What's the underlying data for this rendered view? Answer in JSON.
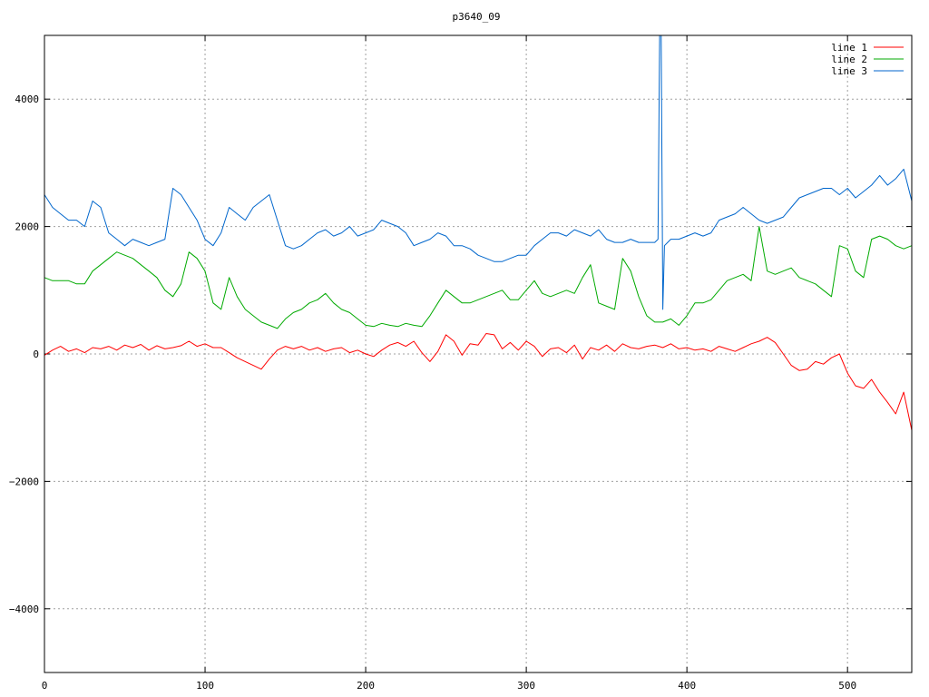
{
  "chart_data": {
    "type": "line",
    "title": "p3640_09",
    "xlabel": "",
    "ylabel": "",
    "xlim": [
      0,
      540
    ],
    "ylim": [
      -5000,
      5000
    ],
    "x_ticks": [
      0,
      100,
      200,
      300,
      400,
      500
    ],
    "y_ticks": [
      -4000,
      -2000,
      0,
      2000,
      4000
    ],
    "x_tick_labels": [
      "0",
      "100",
      "200",
      "300",
      "400",
      "500"
    ],
    "y_tick_labels": [
      "−4000",
      "−2000",
      "0",
      "2000",
      "4000"
    ],
    "grid": true,
    "legend_position": "top-right",
    "series": [
      {
        "name": "line 1",
        "color": "#ff0000",
        "x": [
          0,
          5,
          10,
          15,
          20,
          25,
          30,
          35,
          40,
          45,
          50,
          55,
          60,
          65,
          70,
          75,
          80,
          85,
          90,
          95,
          100,
          105,
          110,
          115,
          120,
          125,
          130,
          135,
          140,
          145,
          150,
          155,
          160,
          165,
          170,
          175,
          180,
          185,
          190,
          195,
          200,
          205,
          210,
          215,
          220,
          225,
          230,
          235,
          240,
          245,
          250,
          255,
          260,
          265,
          270,
          275,
          280,
          285,
          290,
          295,
          300,
          305,
          310,
          315,
          320,
          325,
          330,
          335,
          340,
          345,
          350,
          355,
          360,
          365,
          370,
          375,
          380,
          385,
          390,
          395,
          400,
          405,
          410,
          415,
          420,
          425,
          430,
          435,
          440,
          445,
          450,
          455,
          460,
          465,
          470,
          475,
          480,
          485,
          490,
          495,
          500,
          505,
          510,
          515,
          520,
          525,
          530,
          535,
          540
        ],
        "y": [
          -20,
          60,
          120,
          40,
          80,
          20,
          100,
          80,
          120,
          60,
          140,
          100,
          150,
          60,
          130,
          80,
          100,
          130,
          200,
          120,
          160,
          100,
          100,
          20,
          -60,
          -120,
          -180,
          -240,
          -80,
          60,
          120,
          80,
          120,
          60,
          100,
          40,
          80,
          100,
          20,
          60,
          0,
          -40,
          60,
          140,
          180,
          120,
          200,
          20,
          -120,
          40,
          300,
          200,
          -20,
          160,
          140,
          320,
          300,
          80,
          180,
          60,
          200,
          120,
          -40,
          80,
          100,
          20,
          140,
          -80,
          100,
          60,
          140,
          40,
          160,
          100,
          80,
          120,
          140,
          100,
          160,
          80,
          100,
          60,
          80,
          40,
          120,
          80,
          40,
          100,
          160,
          200,
          260,
          180,
          0,
          -180,
          -260,
          -240,
          -120,
          -160,
          -60,
          0,
          -300,
          -500,
          -540,
          -400,
          -600,
          -760,
          -940,
          -600,
          -1200
        ]
      },
      {
        "name": "line 2",
        "color": "#00aa00",
        "x": [
          0,
          5,
          10,
          15,
          20,
          25,
          30,
          35,
          40,
          45,
          50,
          55,
          60,
          65,
          70,
          75,
          80,
          85,
          90,
          95,
          100,
          105,
          110,
          115,
          120,
          125,
          130,
          135,
          140,
          145,
          150,
          155,
          160,
          165,
          170,
          175,
          180,
          185,
          190,
          195,
          200,
          205,
          210,
          215,
          220,
          225,
          230,
          235,
          240,
          245,
          250,
          255,
          260,
          265,
          270,
          275,
          280,
          285,
          290,
          295,
          300,
          305,
          310,
          315,
          320,
          325,
          330,
          335,
          340,
          345,
          350,
          355,
          360,
          365,
          370,
          375,
          380,
          385,
          390,
          395,
          400,
          405,
          410,
          415,
          420,
          425,
          430,
          435,
          440,
          445,
          450,
          455,
          460,
          465,
          470,
          475,
          480,
          485,
          490,
          495,
          500,
          505,
          510,
          515,
          520,
          525,
          530,
          535,
          540
        ],
        "y": [
          1200,
          1150,
          1150,
          1150,
          1100,
          1100,
          1300,
          1400,
          1500,
          1600,
          1550,
          1500,
          1400,
          1300,
          1200,
          1000,
          900,
          1100,
          1600,
          1500,
          1300,
          800,
          700,
          1200,
          900,
          700,
          600,
          500,
          450,
          400,
          550,
          650,
          700,
          800,
          850,
          950,
          800,
          700,
          650,
          550,
          450,
          430,
          480,
          450,
          430,
          480,
          450,
          430,
          600,
          800,
          1000,
          900,
          800,
          800,
          850,
          900,
          950,
          1000,
          850,
          850,
          1000,
          1150,
          950,
          900,
          950,
          1000,
          950,
          1200,
          1400,
          800,
          750,
          700,
          1500,
          1300,
          900,
          600,
          500,
          500,
          550,
          450,
          600,
          800,
          800,
          850,
          1000,
          1150,
          1200,
          1250,
          1150,
          2000,
          1300,
          1250,
          1300,
          1350,
          1200,
          1150,
          1100,
          1000,
          900,
          1700,
          1650,
          1300,
          1200,
          1800,
          1850,
          1800,
          1700,
          1650,
          1700
        ]
      },
      {
        "name": "line 3",
        "color": "#0066cc",
        "x": [
          0,
          5,
          10,
          15,
          20,
          25,
          30,
          35,
          40,
          45,
          50,
          55,
          60,
          65,
          70,
          75,
          80,
          85,
          90,
          95,
          100,
          105,
          110,
          115,
          120,
          125,
          130,
          135,
          140,
          145,
          150,
          155,
          160,
          165,
          170,
          175,
          180,
          185,
          190,
          195,
          200,
          205,
          210,
          215,
          220,
          225,
          230,
          235,
          240,
          245,
          250,
          255,
          260,
          265,
          270,
          275,
          280,
          285,
          290,
          295,
          300,
          305,
          310,
          315,
          320,
          325,
          330,
          335,
          340,
          345,
          350,
          355,
          360,
          365,
          370,
          375,
          380,
          382,
          383,
          384,
          385,
          386,
          388,
          390,
          395,
          400,
          405,
          410,
          415,
          420,
          425,
          430,
          435,
          440,
          445,
          450,
          455,
          460,
          465,
          470,
          475,
          480,
          485,
          490,
          495,
          500,
          505,
          510,
          515,
          520,
          525,
          530,
          535,
          540
        ],
        "y": [
          2500,
          2300,
          2200,
          2100,
          2100,
          2000,
          2400,
          2300,
          1900,
          1800,
          1700,
          1800,
          1750,
          1700,
          1750,
          1800,
          2600,
          2500,
          2300,
          2100,
          1800,
          1700,
          1900,
          2300,
          2200,
          2100,
          2300,
          2400,
          2500,
          2100,
          1700,
          1650,
          1700,
          1800,
          1900,
          1950,
          1850,
          1900,
          2000,
          1850,
          1900,
          1950,
          2100,
          2050,
          2000,
          1900,
          1700,
          1750,
          1800,
          1900,
          1850,
          1700,
          1700,
          1650,
          1550,
          1500,
          1450,
          1450,
          1500,
          1550,
          1550,
          1700,
          1800,
          1900,
          1900,
          1850,
          1950,
          1900,
          1850,
          1950,
          1800,
          1750,
          1750,
          1800,
          1750,
          1750,
          1750,
          1800,
          5000,
          5000,
          700,
          1700,
          1750,
          1800,
          1800,
          1850,
          1900,
          1850,
          1900,
          2100,
          2150,
          2200,
          2300,
          2200,
          2100,
          2050,
          2100,
          2150,
          2300,
          2450,
          2500,
          2550,
          2600,
          2600,
          2500,
          2600,
          2450,
          2550,
          2650,
          2800,
          2650,
          2750,
          2900,
          2400
        ]
      }
    ]
  }
}
